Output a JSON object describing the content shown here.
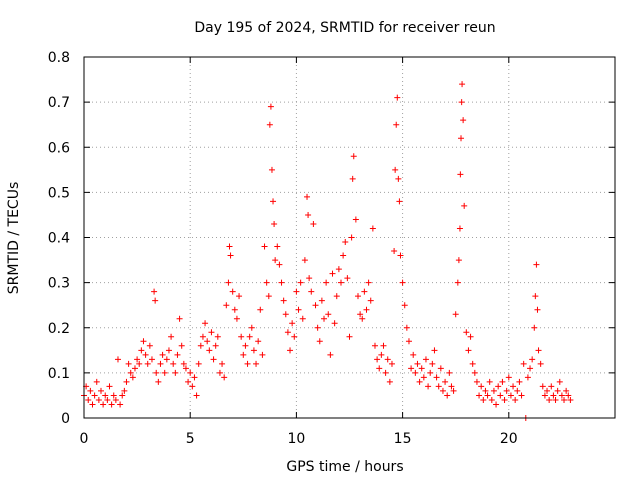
{
  "chart_data": {
    "type": "scatter",
    "title": "Day 195 of 2024, SRMTID for receiver reun",
    "xlabel": "GPS time / hours",
    "ylabel": "SRMTID / TECUs",
    "xlim": [
      0,
      25
    ],
    "ylim": [
      0,
      0.8
    ],
    "xticks": [
      0,
      5,
      10,
      15,
      20
    ],
    "yticks": [
      0,
      0.1,
      0.2,
      0.3,
      0.4,
      0.5,
      0.6,
      0.7,
      0.8
    ],
    "xtick_labels": [
      "0",
      "5",
      "10",
      "15",
      "20"
    ],
    "ytick_labels": [
      "0",
      "0.1",
      "0.2",
      "0.3",
      "0.4",
      "0.5",
      "0.6",
      "0.7",
      "0.8"
    ],
    "grid": true,
    "marker": "+",
    "series": [
      {
        "name": "SRMTID",
        "color": "#ff0000",
        "points": [
          [
            0.0,
            0.05
          ],
          [
            0.1,
            0.07
          ],
          [
            0.2,
            0.04
          ],
          [
            0.3,
            0.06
          ],
          [
            0.4,
            0.03
          ],
          [
            0.5,
            0.05
          ],
          [
            0.6,
            0.08
          ],
          [
            0.7,
            0.04
          ],
          [
            0.8,
            0.06
          ],
          [
            0.9,
            0.03
          ],
          [
            1.0,
            0.05
          ],
          [
            1.1,
            0.04
          ],
          [
            1.2,
            0.07
          ],
          [
            1.3,
            0.03
          ],
          [
            1.4,
            0.05
          ],
          [
            1.5,
            0.04
          ],
          [
            1.6,
            0.13
          ],
          [
            1.7,
            0.03
          ],
          [
            1.8,
            0.05
          ],
          [
            1.9,
            0.06
          ],
          [
            2.0,
            0.08
          ],
          [
            2.1,
            0.12
          ],
          [
            2.2,
            0.1
          ],
          [
            2.3,
            0.09
          ],
          [
            2.4,
            0.11
          ],
          [
            2.5,
            0.13
          ],
          [
            2.6,
            0.12
          ],
          [
            2.7,
            0.15
          ],
          [
            2.8,
            0.17
          ],
          [
            2.9,
            0.14
          ],
          [
            3.0,
            0.12
          ],
          [
            3.1,
            0.16
          ],
          [
            3.2,
            0.13
          ],
          [
            3.3,
            0.28
          ],
          [
            3.35,
            0.26
          ],
          [
            3.4,
            0.1
          ],
          [
            3.5,
            0.08
          ],
          [
            3.6,
            0.12
          ],
          [
            3.7,
            0.14
          ],
          [
            3.8,
            0.1
          ],
          [
            3.9,
            0.13
          ],
          [
            4.0,
            0.15
          ],
          [
            4.1,
            0.18
          ],
          [
            4.2,
            0.12
          ],
          [
            4.3,
            0.1
          ],
          [
            4.4,
            0.14
          ],
          [
            4.5,
            0.22
          ],
          [
            4.6,
            0.16
          ],
          [
            4.7,
            0.12
          ],
          [
            4.8,
            0.11
          ],
          [
            4.9,
            0.08
          ],
          [
            5.0,
            0.1
          ],
          [
            5.1,
            0.07
          ],
          [
            5.2,
            0.09
          ],
          [
            5.3,
            0.05
          ],
          [
            5.4,
            0.12
          ],
          [
            5.5,
            0.16
          ],
          [
            5.6,
            0.18
          ],
          [
            5.7,
            0.21
          ],
          [
            5.8,
            0.17
          ],
          [
            5.9,
            0.15
          ],
          [
            6.0,
            0.19
          ],
          [
            6.1,
            0.13
          ],
          [
            6.2,
            0.16
          ],
          [
            6.3,
            0.18
          ],
          [
            6.4,
            0.1
          ],
          [
            6.5,
            0.12
          ],
          [
            6.6,
            0.09
          ],
          [
            6.7,
            0.25
          ],
          [
            6.8,
            0.3
          ],
          [
            6.85,
            0.38
          ],
          [
            6.9,
            0.36
          ],
          [
            7.0,
            0.28
          ],
          [
            7.1,
            0.24
          ],
          [
            7.2,
            0.22
          ],
          [
            7.3,
            0.27
          ],
          [
            7.4,
            0.18
          ],
          [
            7.5,
            0.14
          ],
          [
            7.6,
            0.16
          ],
          [
            7.7,
            0.12
          ],
          [
            7.8,
            0.18
          ],
          [
            7.9,
            0.2
          ],
          [
            8.0,
            0.15
          ],
          [
            8.1,
            0.12
          ],
          [
            8.2,
            0.17
          ],
          [
            8.3,
            0.24
          ],
          [
            8.4,
            0.14
          ],
          [
            8.5,
            0.38
          ],
          [
            8.6,
            0.3
          ],
          [
            8.7,
            0.27
          ],
          [
            8.75,
            0.65
          ],
          [
            8.8,
            0.69
          ],
          [
            8.85,
            0.55
          ],
          [
            8.9,
            0.48
          ],
          [
            8.95,
            0.43
          ],
          [
            9.0,
            0.35
          ],
          [
            9.1,
            0.38
          ],
          [
            9.2,
            0.34
          ],
          [
            9.3,
            0.3
          ],
          [
            9.4,
            0.26
          ],
          [
            9.5,
            0.23
          ],
          [
            9.6,
            0.19
          ],
          [
            9.7,
            0.15
          ],
          [
            9.8,
            0.21
          ],
          [
            9.9,
            0.18
          ],
          [
            10.0,
            0.28
          ],
          [
            10.1,
            0.24
          ],
          [
            10.2,
            0.3
          ],
          [
            10.3,
            0.22
          ],
          [
            10.4,
            0.35
          ],
          [
            10.5,
            0.49
          ],
          [
            10.55,
            0.45
          ],
          [
            10.6,
            0.31
          ],
          [
            10.7,
            0.28
          ],
          [
            10.8,
            0.43
          ],
          [
            10.9,
            0.25
          ],
          [
            11.0,
            0.2
          ],
          [
            11.1,
            0.17
          ],
          [
            11.2,
            0.26
          ],
          [
            11.3,
            0.22
          ],
          [
            11.4,
            0.3
          ],
          [
            11.5,
            0.23
          ],
          [
            11.6,
            0.14
          ],
          [
            11.7,
            0.32
          ],
          [
            11.8,
            0.21
          ],
          [
            11.9,
            0.27
          ],
          [
            12.0,
            0.33
          ],
          [
            12.1,
            0.3
          ],
          [
            12.2,
            0.36
          ],
          [
            12.3,
            0.39
          ],
          [
            12.4,
            0.31
          ],
          [
            12.5,
            0.18
          ],
          [
            12.6,
            0.4
          ],
          [
            12.65,
            0.53
          ],
          [
            12.7,
            0.58
          ],
          [
            12.8,
            0.44
          ],
          [
            12.9,
            0.27
          ],
          [
            13.0,
            0.23
          ],
          [
            13.1,
            0.22
          ],
          [
            13.2,
            0.28
          ],
          [
            13.3,
            0.24
          ],
          [
            13.4,
            0.3
          ],
          [
            13.5,
            0.26
          ],
          [
            13.6,
            0.42
          ],
          [
            13.7,
            0.16
          ],
          [
            13.8,
            0.13
          ],
          [
            13.9,
            0.11
          ],
          [
            14.0,
            0.14
          ],
          [
            14.1,
            0.16
          ],
          [
            14.2,
            0.1
          ],
          [
            14.3,
            0.13
          ],
          [
            14.4,
            0.08
          ],
          [
            14.5,
            0.12
          ],
          [
            14.6,
            0.37
          ],
          [
            14.65,
            0.55
          ],
          [
            14.7,
            0.65
          ],
          [
            14.75,
            0.71
          ],
          [
            14.8,
            0.53
          ],
          [
            14.85,
            0.48
          ],
          [
            14.9,
            0.36
          ],
          [
            15.0,
            0.3
          ],
          [
            15.1,
            0.25
          ],
          [
            15.2,
            0.2
          ],
          [
            15.3,
            0.17
          ],
          [
            15.4,
            0.11
          ],
          [
            15.5,
            0.14
          ],
          [
            15.6,
            0.1
          ],
          [
            15.7,
            0.12
          ],
          [
            15.8,
            0.08
          ],
          [
            15.9,
            0.11
          ],
          [
            16.0,
            0.09
          ],
          [
            16.1,
            0.13
          ],
          [
            16.2,
            0.07
          ],
          [
            16.3,
            0.1
          ],
          [
            16.4,
            0.12
          ],
          [
            16.5,
            0.15
          ],
          [
            16.6,
            0.09
          ],
          [
            16.7,
            0.07
          ],
          [
            16.8,
            0.11
          ],
          [
            16.9,
            0.06
          ],
          [
            17.0,
            0.08
          ],
          [
            17.1,
            0.05
          ],
          [
            17.2,
            0.1
          ],
          [
            17.3,
            0.07
          ],
          [
            17.4,
            0.06
          ],
          [
            17.5,
            0.23
          ],
          [
            17.6,
            0.3
          ],
          [
            17.65,
            0.35
          ],
          [
            17.7,
            0.42
          ],
          [
            17.72,
            0.54
          ],
          [
            17.75,
            0.62
          ],
          [
            17.78,
            0.7
          ],
          [
            17.8,
            0.74
          ],
          [
            17.85,
            0.66
          ],
          [
            17.9,
            0.47
          ],
          [
            18.0,
            0.19
          ],
          [
            18.1,
            0.15
          ],
          [
            18.2,
            0.18
          ],
          [
            18.3,
            0.12
          ],
          [
            18.4,
            0.1
          ],
          [
            18.5,
            0.08
          ],
          [
            18.6,
            0.05
          ],
          [
            18.7,
            0.07
          ],
          [
            18.8,
            0.04
          ],
          [
            18.9,
            0.06
          ],
          [
            19.0,
            0.05
          ],
          [
            19.1,
            0.08
          ],
          [
            19.2,
            0.04
          ],
          [
            19.3,
            0.06
          ],
          [
            19.4,
            0.03
          ],
          [
            19.5,
            0.07
          ],
          [
            19.6,
            0.05
          ],
          [
            19.7,
            0.08
          ],
          [
            19.8,
            0.04
          ],
          [
            19.9,
            0.06
          ],
          [
            20.0,
            0.09
          ],
          [
            20.1,
            0.05
          ],
          [
            20.2,
            0.07
          ],
          [
            20.3,
            0.04
          ],
          [
            20.4,
            0.06
          ],
          [
            20.5,
            0.08
          ],
          [
            20.6,
            0.05
          ],
          [
            20.7,
            0.12
          ],
          [
            20.8,
            0.0
          ],
          [
            20.9,
            0.09
          ],
          [
            21.0,
            0.11
          ],
          [
            21.1,
            0.13
          ],
          [
            21.2,
            0.2
          ],
          [
            21.25,
            0.27
          ],
          [
            21.3,
            0.34
          ],
          [
            21.35,
            0.24
          ],
          [
            21.4,
            0.15
          ],
          [
            21.5,
            0.12
          ],
          [
            21.6,
            0.07
          ],
          [
            21.7,
            0.05
          ],
          [
            21.8,
            0.06
          ],
          [
            21.9,
            0.04
          ],
          [
            22.0,
            0.07
          ],
          [
            22.1,
            0.05
          ],
          [
            22.2,
            0.04
          ],
          [
            22.3,
            0.06
          ],
          [
            22.4,
            0.08
          ],
          [
            22.5,
            0.05
          ],
          [
            22.6,
            0.04
          ],
          [
            22.7,
            0.06
          ],
          [
            22.8,
            0.05
          ],
          [
            22.9,
            0.04
          ]
        ]
      }
    ]
  }
}
